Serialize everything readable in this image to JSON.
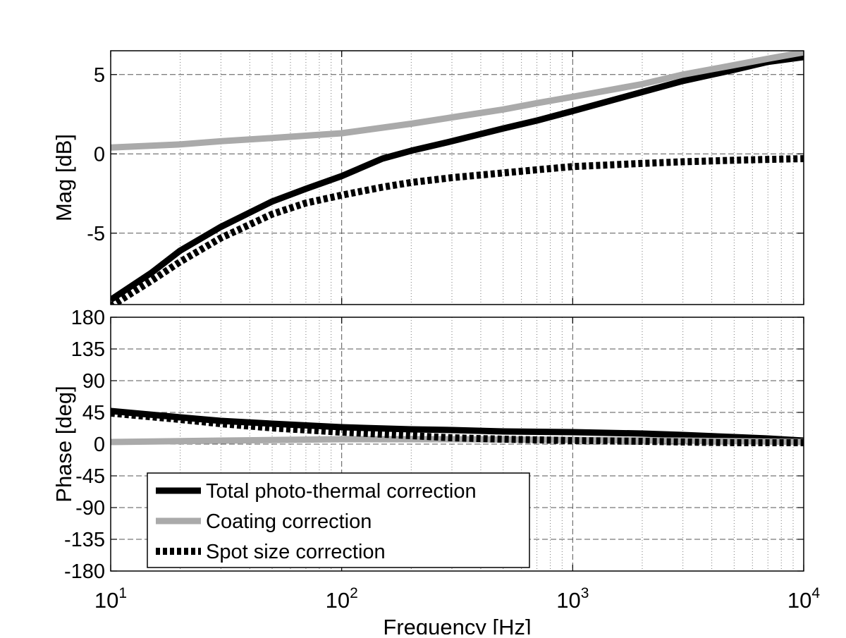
{
  "chart_data": [
    {
      "type": "line",
      "panel": "magnitude",
      "ylabel": "Mag [dB]",
      "xscale": "log",
      "xlim": [
        10,
        10000
      ],
      "ylim": [
        -9.5,
        6.5
      ],
      "yticks": [
        5,
        0,
        -5
      ],
      "ytick_labels": [
        "5",
        "0",
        "-5"
      ],
      "grid": true,
      "series": [
        {
          "name": "Total photo-thermal correction",
          "color": "#000000",
          "style": "solid",
          "x": [
            10,
            15,
            20,
            30,
            50,
            70,
            100,
            150,
            200,
            300,
            500,
            700,
            1000,
            2000,
            3000,
            5000,
            7000,
            10000
          ],
          "values": [
            -9.2,
            -7.5,
            -6.1,
            -4.6,
            -3.0,
            -2.2,
            -1.4,
            -0.3,
            0.2,
            0.8,
            1.6,
            2.1,
            2.7,
            3.9,
            4.6,
            5.3,
            5.8,
            6.1
          ]
        },
        {
          "name": "Coating correction",
          "color": "#aaaaaa",
          "style": "solid",
          "x": [
            10,
            20,
            30,
            50,
            100,
            200,
            300,
            500,
            700,
            1000,
            2000,
            3000,
            5000,
            7000,
            10000
          ],
          "values": [
            0.4,
            0.6,
            0.8,
            1.0,
            1.3,
            1.9,
            2.3,
            2.8,
            3.2,
            3.6,
            4.4,
            5.0,
            5.6,
            6.0,
            6.4
          ]
        },
        {
          "name": "Spot size correction",
          "color": "#000000",
          "style": "dotted",
          "x": [
            10,
            15,
            20,
            30,
            50,
            70,
            100,
            150,
            200,
            300,
            500,
            700,
            1000,
            2000,
            3000,
            5000,
            7000,
            10000
          ],
          "values": [
            -9.6,
            -8.0,
            -6.8,
            -5.3,
            -3.8,
            -3.1,
            -2.6,
            -2.1,
            -1.8,
            -1.5,
            -1.2,
            -1.0,
            -0.8,
            -0.6,
            -0.5,
            -0.4,
            -0.35,
            -0.3
          ]
        }
      ]
    },
    {
      "type": "line",
      "panel": "phase",
      "xlabel": "Frequency [Hz]",
      "ylabel": "Phase [deg]",
      "xscale": "log",
      "xlim": [
        10,
        10000
      ],
      "ylim": [
        -180,
        180
      ],
      "xticks": [
        10,
        100,
        1000,
        10000
      ],
      "xtick_labels": [
        {
          "base": "10",
          "exp": "1"
        },
        {
          "base": "10",
          "exp": "2"
        },
        {
          "base": "10",
          "exp": "3"
        },
        {
          "base": "10",
          "exp": "4"
        }
      ],
      "yticks": [
        180,
        135,
        90,
        45,
        0,
        -45,
        -90,
        -135,
        -180
      ],
      "ytick_labels": [
        "180",
        "135",
        "90",
        "45",
        "0",
        "-45",
        "-90",
        "-135",
        "-180"
      ],
      "grid": true,
      "legend": "bottom-left",
      "series": [
        {
          "name": "Total photo-thermal correction",
          "color": "#000000",
          "style": "solid",
          "x": [
            10,
            20,
            30,
            50,
            100,
            200,
            300,
            500,
            1000,
            2000,
            3000,
            5000,
            7000,
            10000
          ],
          "values": [
            47,
            38,
            33,
            29,
            24,
            21,
            20,
            18,
            17,
            15,
            13,
            10,
            8,
            5
          ]
        },
        {
          "name": "Coating correction",
          "color": "#aaaaaa",
          "style": "solid",
          "x": [
            10,
            30,
            100,
            300,
            1000,
            3000,
            10000
          ],
          "values": [
            3,
            5,
            7,
            7,
            6,
            5,
            3
          ]
        },
        {
          "name": "Spot size correction",
          "color": "#000000",
          "style": "dotted",
          "x": [
            10,
            20,
            30,
            50,
            100,
            200,
            300,
            500,
            1000,
            2000,
            3000,
            5000,
            10000
          ],
          "values": [
            44,
            35,
            29,
            23,
            17,
            12,
            9,
            7,
            5,
            4,
            3,
            2,
            2
          ]
        }
      ]
    }
  ],
  "legend": {
    "items": [
      {
        "label": "Total photo-thermal correction",
        "color": "#000000",
        "style": "solid"
      },
      {
        "label": "Coating correction",
        "color": "#aaaaaa",
        "style": "solid"
      },
      {
        "label": "Spot size correction",
        "color": "#000000",
        "style": "dotted"
      }
    ]
  }
}
